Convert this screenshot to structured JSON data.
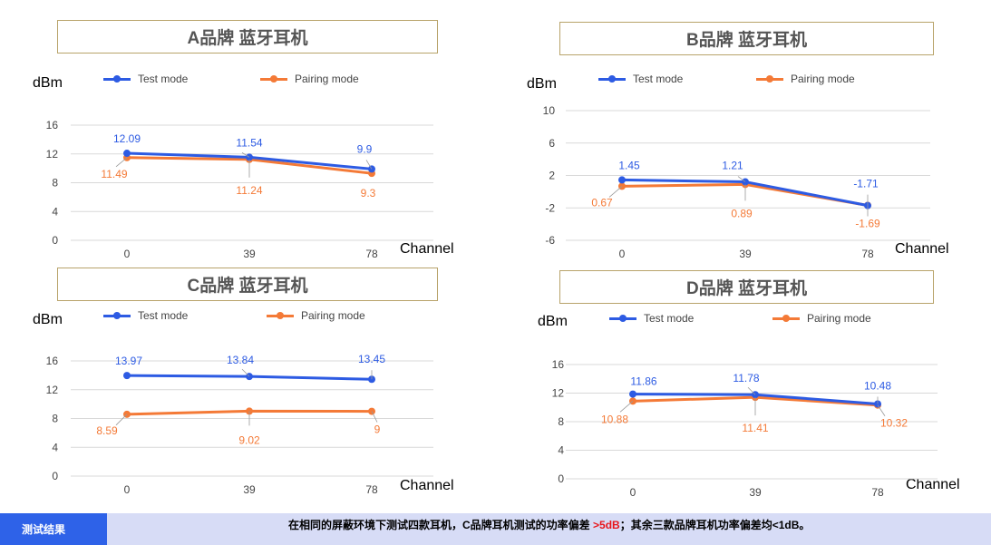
{
  "colors": {
    "test": "#2d5be3",
    "pairing": "#f47a37",
    "grid": "#d9d9d9",
    "tick": "#444444"
  },
  "legend": {
    "test": "Test mode",
    "pairing": "Pairing mode"
  },
  "footer": {
    "label": "测试结果",
    "text_before": "在相同的屏蔽环境下测试四款耳机，C品牌耳机测试的功率偏差",
    "highlight": " >5dB",
    "text_after": "；其余三款品牌耳机功率偏差均<1dB。"
  },
  "chart_data": [
    {
      "type": "line",
      "title": "A品牌 蓝牙耳机",
      "ylabel": "dBm",
      "xlabel": "Channel",
      "x": [
        "0",
        "39",
        "78"
      ],
      "yticks": [
        0,
        4,
        8,
        12,
        16
      ],
      "ylim": [
        0,
        16
      ],
      "grid": true,
      "legend": "top",
      "series": [
        {
          "name": "Test mode",
          "values": [
            12.09,
            11.54,
            9.9
          ],
          "labels": [
            "12.09",
            "11.54",
            "9.9"
          ]
        },
        {
          "name": "Pairing mode",
          "values": [
            11.49,
            11.24,
            9.3
          ],
          "labels": [
            "11.49",
            "11.24",
            "9.3"
          ]
        }
      ]
    },
    {
      "type": "line",
      "title": "B品牌 蓝牙耳机",
      "ylabel": "dBm",
      "xlabel": "Channel",
      "x": [
        "0",
        "39",
        "78"
      ],
      "yticks": [
        -6,
        -2,
        2,
        6,
        10
      ],
      "ylim": [
        -6,
        10
      ],
      "grid": true,
      "legend": "top",
      "series": [
        {
          "name": "Test mode",
          "values": [
            1.45,
            1.21,
            -1.71
          ],
          "labels": [
            "1.45",
            "1.21",
            "-1.71"
          ]
        },
        {
          "name": "Pairing mode",
          "values": [
            0.67,
            0.89,
            -1.69
          ],
          "labels": [
            "0.67",
            "0.89",
            "-1.69"
          ]
        }
      ]
    },
    {
      "type": "line",
      "title": "C品牌 蓝牙耳机",
      "ylabel": "dBm",
      "xlabel": "Channel",
      "x": [
        "0",
        "39",
        "78"
      ],
      "yticks": [
        0,
        4,
        8,
        12,
        16
      ],
      "ylim": [
        0,
        16
      ],
      "grid": true,
      "legend": "top",
      "series": [
        {
          "name": "Test mode",
          "values": [
            13.97,
            13.84,
            13.45
          ],
          "labels": [
            "13.97",
            "13.84",
            "13.45"
          ]
        },
        {
          "name": "Pairing mode",
          "values": [
            8.59,
            9.02,
            9
          ],
          "labels": [
            "8.59",
            "9.02",
            "9"
          ]
        }
      ]
    },
    {
      "type": "line",
      "title": "D品牌 蓝牙耳机",
      "ylabel": "dBm",
      "xlabel": "Channel",
      "x": [
        "0",
        "39",
        "78"
      ],
      "yticks": [
        0,
        4,
        8,
        12,
        16
      ],
      "ylim": [
        0,
        16
      ],
      "grid": true,
      "legend": "top",
      "series": [
        {
          "name": "Test mode",
          "values": [
            11.86,
            11.78,
            10.48
          ],
          "labels": [
            "11.86",
            "11.78",
            "10.48"
          ]
        },
        {
          "name": "Pairing mode",
          "values": [
            10.88,
            11.41,
            10.32
          ],
          "labels": [
            "10.88",
            "11.41",
            "10.32"
          ]
        }
      ]
    }
  ]
}
